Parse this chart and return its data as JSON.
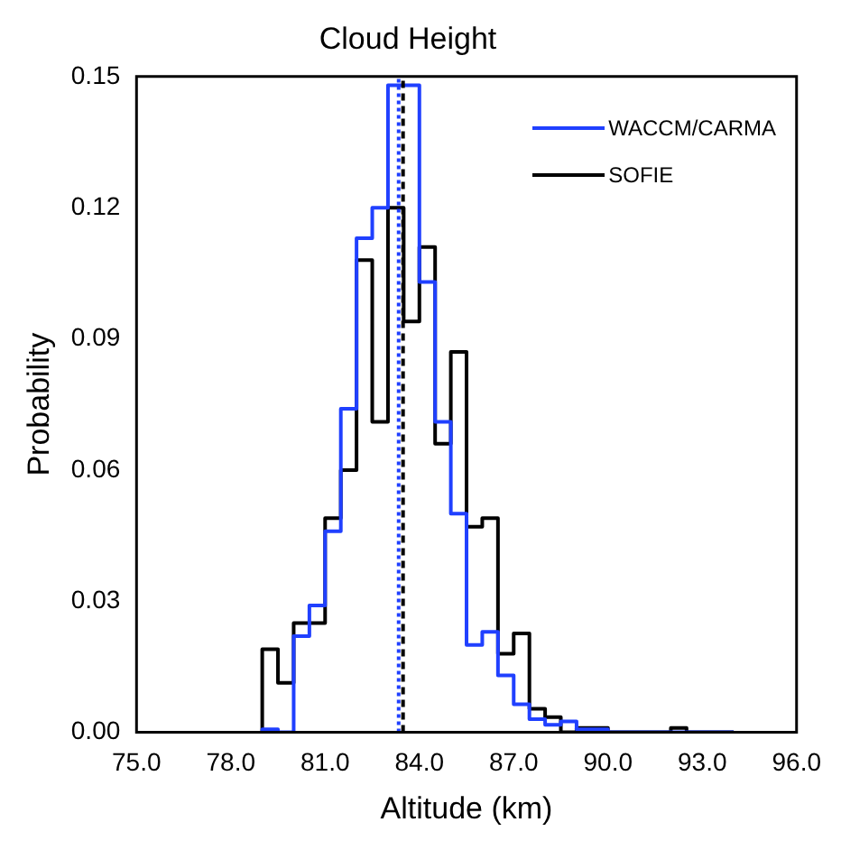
{
  "chart_data": {
    "type": "histogram",
    "title": "Cloud Height",
    "xlabel": "Altitude (km)",
    "ylabel": "Probability",
    "bins": [
      79.0,
      79.5,
      80.0,
      80.5,
      81.0,
      81.5,
      82.0,
      82.5,
      83.0,
      83.5,
      84.0,
      84.5,
      85.0,
      85.5,
      86.0,
      86.5,
      87.0,
      87.5,
      88.0,
      88.5,
      89.0,
      89.5,
      90.0,
      90.5,
      91.0,
      91.5,
      92.0,
      92.5,
      93.0,
      93.5,
      94.0
    ],
    "series": [
      {
        "name": "WACCM/CARMA",
        "color": "#2040ff",
        "values": [
          0.0007,
          0,
          0.022,
          0.029,
          0.046,
          0.074,
          0.113,
          0.12,
          0.148,
          0.148,
          0.103,
          0.071,
          0.05,
          0.02,
          0.023,
          0.013,
          0.0064,
          0.003,
          0.0017,
          0.0025,
          0.0007,
          0.0007,
          0,
          0,
          0,
          0,
          0,
          0,
          0,
          0
        ]
      },
      {
        "name": "SOFIE",
        "color": "#000000",
        "values": [
          0.019,
          0.0113,
          0.025,
          0.025,
          0.049,
          0.06,
          0.108,
          0.071,
          0.12,
          0.094,
          0.111,
          0.066,
          0.087,
          0.047,
          0.049,
          0.018,
          0.0226,
          0.0054,
          0.0035,
          0,
          0.001,
          0.001,
          0,
          0,
          0,
          0,
          0.001,
          0,
          0,
          0
        ]
      }
    ],
    "ref_lines": [
      {
        "axis": "x",
        "value": 83.34,
        "color": "#2040ff",
        "line_style": "dotted"
      },
      {
        "axis": "x",
        "value": 83.48,
        "color": "#000000",
        "line_style": "dashed"
      }
    ],
    "xlim": [
      75,
      96
    ],
    "xticks": [
      {
        "value": 75,
        "label": "75.0"
      },
      {
        "value": 78,
        "label": "78.0"
      },
      {
        "value": 81,
        "label": "81.0"
      },
      {
        "value": 84,
        "label": "84.0"
      },
      {
        "value": 87,
        "label": "87.0"
      },
      {
        "value": 90,
        "label": "90.0"
      },
      {
        "value": 93,
        "label": "93.0"
      },
      {
        "value": 96,
        "label": "96.0"
      }
    ],
    "ylim": [
      0,
      0.15
    ],
    "yticks": [
      {
        "value": 0,
        "label": "0.00"
      },
      {
        "value": 0.03,
        "label": "0.03"
      },
      {
        "value": 0.06,
        "label": "0.06"
      },
      {
        "value": 0.09,
        "label": "0.09"
      },
      {
        "value": 0.12,
        "label": "0.12"
      },
      {
        "value": 0.15,
        "label": "0.15"
      }
    ],
    "grid": false,
    "legend": "top right"
  }
}
